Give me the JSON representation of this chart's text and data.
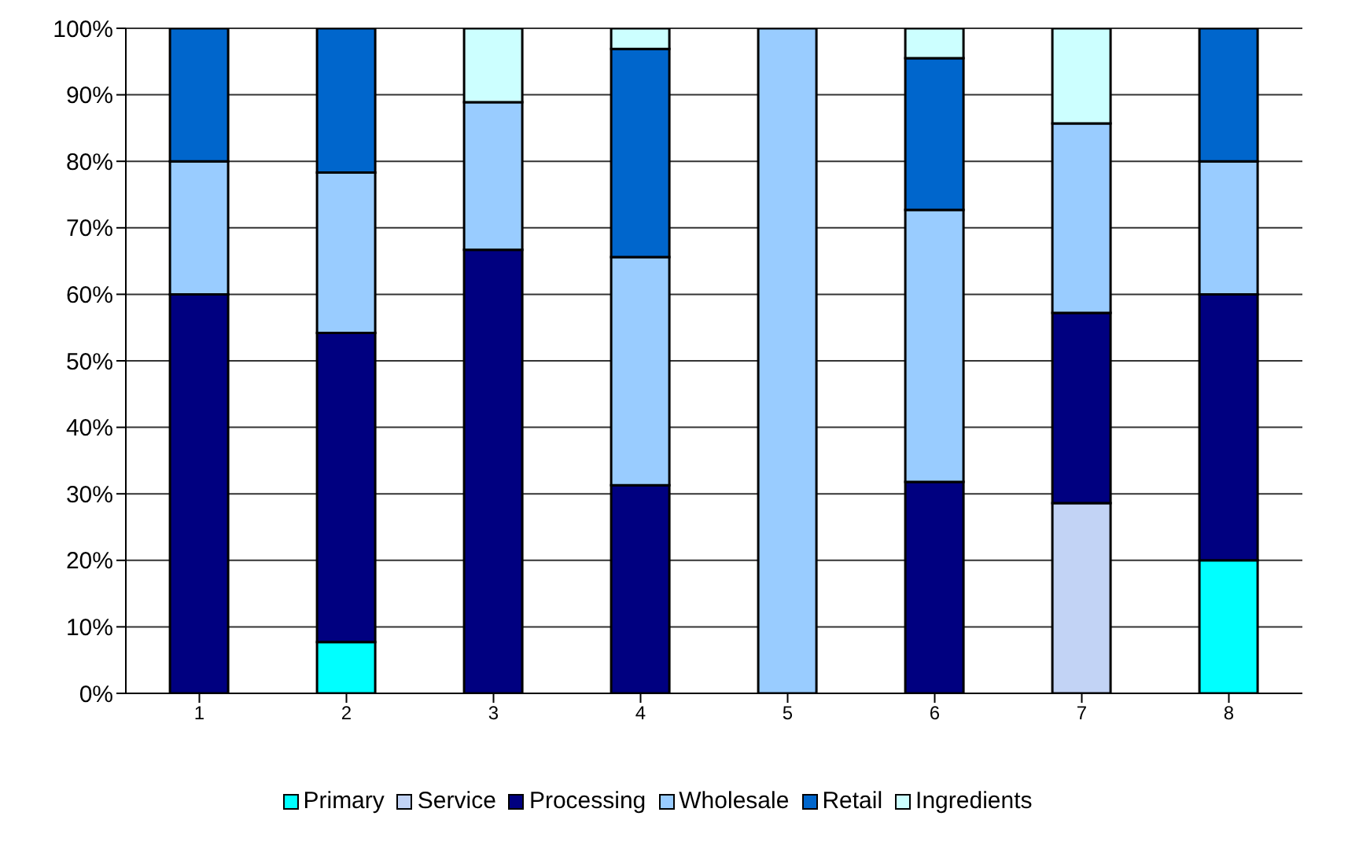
{
  "chart_data": {
    "type": "bar",
    "stacked": true,
    "categories": [
      "1",
      "2",
      "3",
      "4",
      "5",
      "6",
      "7",
      "8"
    ],
    "series": [
      {
        "name": "Primary",
        "color": "#00ffff",
        "values": [
          0,
          7.7,
          0,
          0,
          0,
          0,
          0,
          20
        ]
      },
      {
        "name": "Service",
        "color": "#c2d3f5",
        "values": [
          0,
          0,
          0,
          0,
          0,
          0,
          28.6,
          0
        ]
      },
      {
        "name": "Processing",
        "color": "#000080",
        "values": [
          60,
          46.5,
          66.7,
          31.3,
          0,
          31.8,
          28.6,
          40
        ]
      },
      {
        "name": "Wholesale",
        "color": "#99ccff",
        "values": [
          20,
          24.1,
          22.2,
          34.3,
          100,
          40.9,
          28.5,
          20
        ]
      },
      {
        "name": "Retail",
        "color": "#0066cc",
        "values": [
          20,
          21.7,
          0,
          31.3,
          0,
          22.8,
          0,
          20
        ]
      },
      {
        "name": "Ingredients",
        "color": "#ccffff",
        "values": [
          0,
          0,
          11.1,
          3.1,
          0,
          4.5,
          14.3,
          0
        ]
      }
    ],
    "ylim": [
      0,
      100
    ],
    "yticks": [
      {
        "value": 0,
        "label": "0%"
      },
      {
        "value": 10,
        "label": "10%"
      },
      {
        "value": 20,
        "label": "20%"
      },
      {
        "value": 30,
        "label": "30%"
      },
      {
        "value": 40,
        "label": "40%"
      },
      {
        "value": 50,
        "label": "50%"
      },
      {
        "value": 60,
        "label": "60%"
      },
      {
        "value": 70,
        "label": "70%"
      },
      {
        "value": 80,
        "label": "80%"
      },
      {
        "value": 90,
        "label": "90%"
      },
      {
        "value": 100,
        "label": "100%"
      }
    ],
    "grid": "y",
    "legend": "bottom"
  }
}
